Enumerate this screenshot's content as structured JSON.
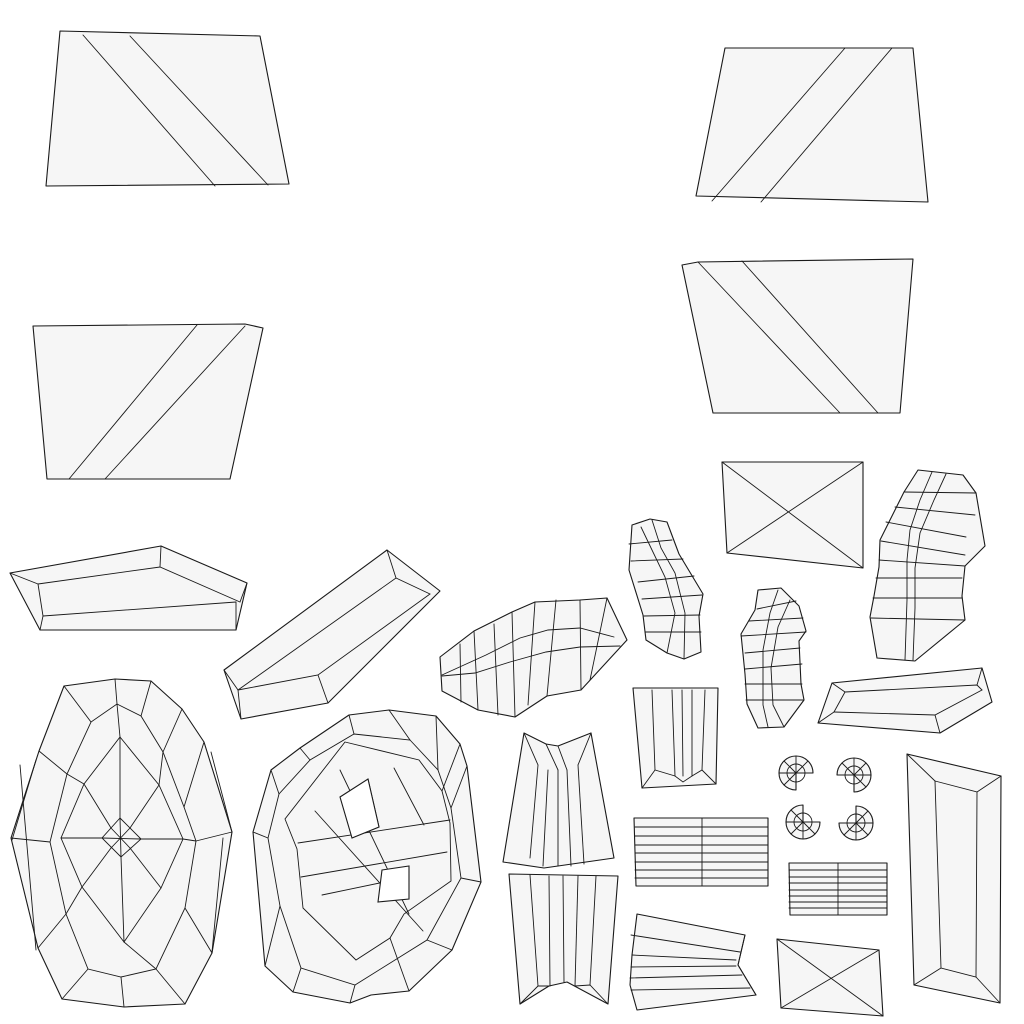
{
  "canvas": {
    "background": "#ffffff",
    "island_fill": "#f6f6f6",
    "edge_color": "#1a1a1a"
  },
  "islands": [
    "uv-island-panel-top-left",
    "uv-island-panel-top-right",
    "uv-island-panel-mid-left",
    "uv-island-panel-mid-right",
    "uv-island-envelope-right",
    "uv-island-envelope-bottom",
    "uv-island-bevel-strip-left",
    "uv-island-bevel-strip-diagonal",
    "uv-island-bevel-strip-right",
    "uv-island-bevel-strip-tall",
    "uv-island-oval-grid-left",
    "uv-island-oval-grid-middle",
    "uv-island-arc-strip-horizontal",
    "uv-island-arc-strip-vertical-small",
    "uv-island-arc-strip-vertical-medium",
    "uv-island-arc-strip-vertical-large",
    "uv-island-pleat-a",
    "uv-island-pleat-b",
    "uv-island-pleat-c",
    "uv-island-pleat-d",
    "uv-island-stripe-grid-large",
    "uv-island-stripe-grid-small",
    "uv-island-fan-strip",
    "uv-island-rosette-1",
    "uv-island-rosette-2",
    "uv-island-rosette-3",
    "uv-island-rosette-4"
  ]
}
